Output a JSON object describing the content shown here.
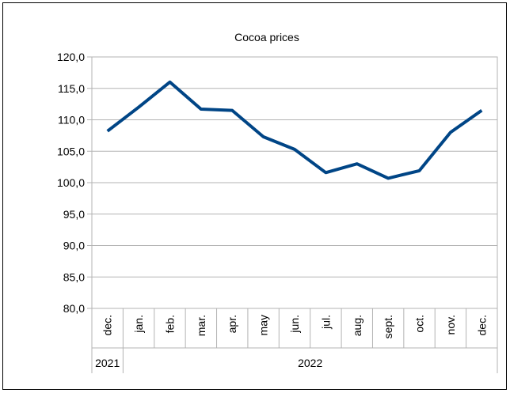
{
  "chart_data": {
    "type": "line",
    "title": "Cocoa prices",
    "categories": [
      "dec.",
      "jan.",
      "feb.",
      "mar.",
      "apr.",
      "may",
      "jun.",
      "jul.",
      "aug.",
      "sept.",
      "oct.",
      "nov.",
      "dec."
    ],
    "groups": [
      {
        "label": "2021",
        "from": 0,
        "to": 0
      },
      {
        "label": "2022",
        "from": 1,
        "to": 12
      }
    ],
    "series": [
      {
        "values": [
          108.2,
          112.0,
          116.0,
          111.7,
          111.5,
          107.3,
          105.3,
          101.6,
          103.0,
          100.7,
          101.9,
          108.0,
          111.5
        ]
      }
    ],
    "yticks": [
      "80,0",
      "85,0",
      "90,0",
      "95,0",
      "100,0",
      "105,0",
      "110,0",
      "115,0",
      "120,0"
    ],
    "ylim": [
      80,
      120
    ],
    "ystep": 5,
    "grid": true,
    "legend": "none",
    "color": "#004586"
  }
}
